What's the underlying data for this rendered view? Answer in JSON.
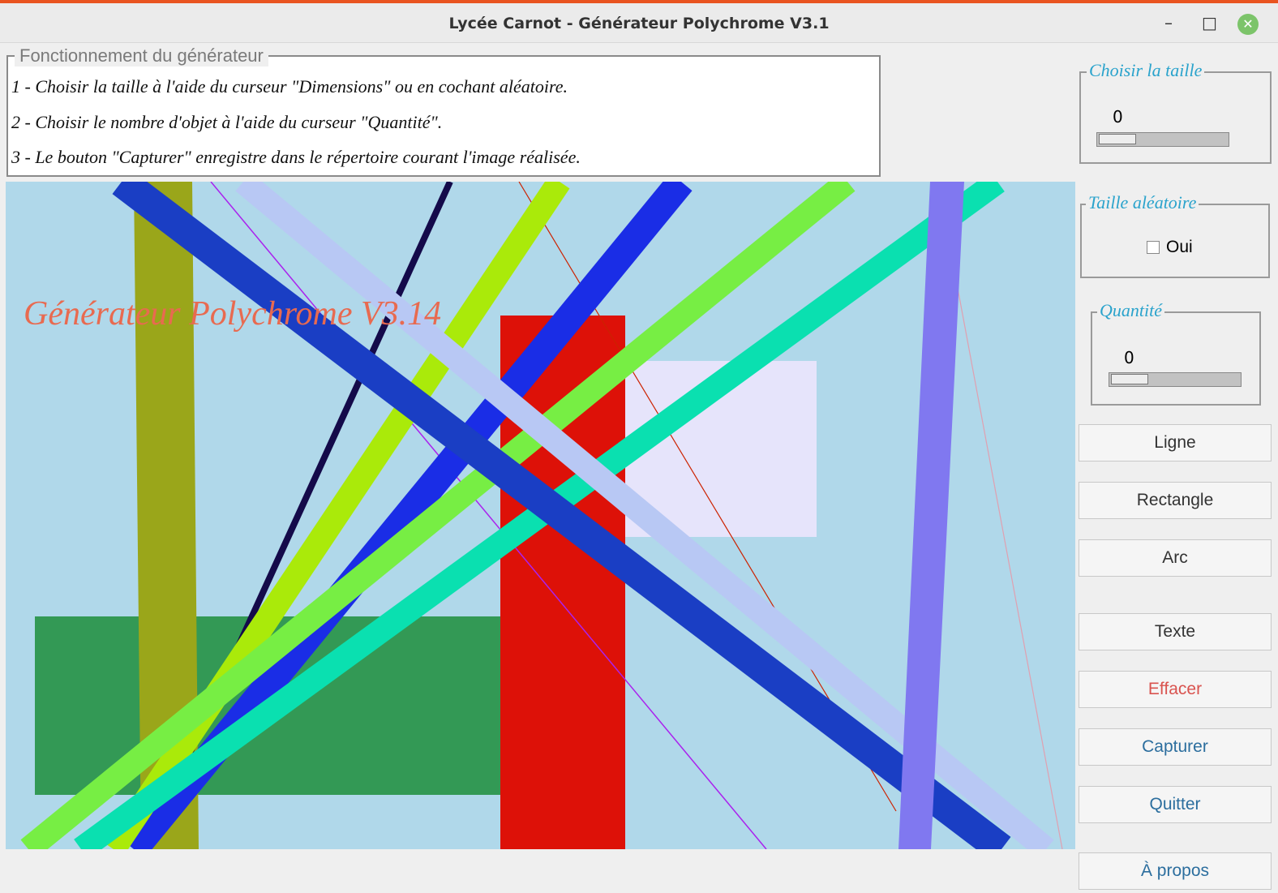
{
  "window": {
    "title": "Lycée Carnot - Générateur Polychrome V3.1"
  },
  "instructions": {
    "legend": "Fonctionnement du générateur",
    "lines": [
      "1 - Choisir la taille à l'aide du curseur \"Dimensions\" ou en cochant aléatoire.",
      "2 - Choisir le nombre d'objet à l'aide du curseur \"Quantité\".",
      "3 - Le bouton \"Capturer\" enregistre dans le répertoire courant l'image réalisée."
    ]
  },
  "canvas": {
    "text": "Générateur Polychrome V3.14"
  },
  "panels": {
    "size": {
      "label": "Choisir la taille",
      "value": "0"
    },
    "random": {
      "label": "Taille aléatoire",
      "option": "Oui"
    },
    "quantity": {
      "label": "Quantité",
      "value": "0"
    }
  },
  "buttons": [
    "Ligne",
    "Rectangle",
    "Arc",
    "Texte",
    "Effacer",
    "Capturer",
    "Quitter",
    "À propos"
  ]
}
